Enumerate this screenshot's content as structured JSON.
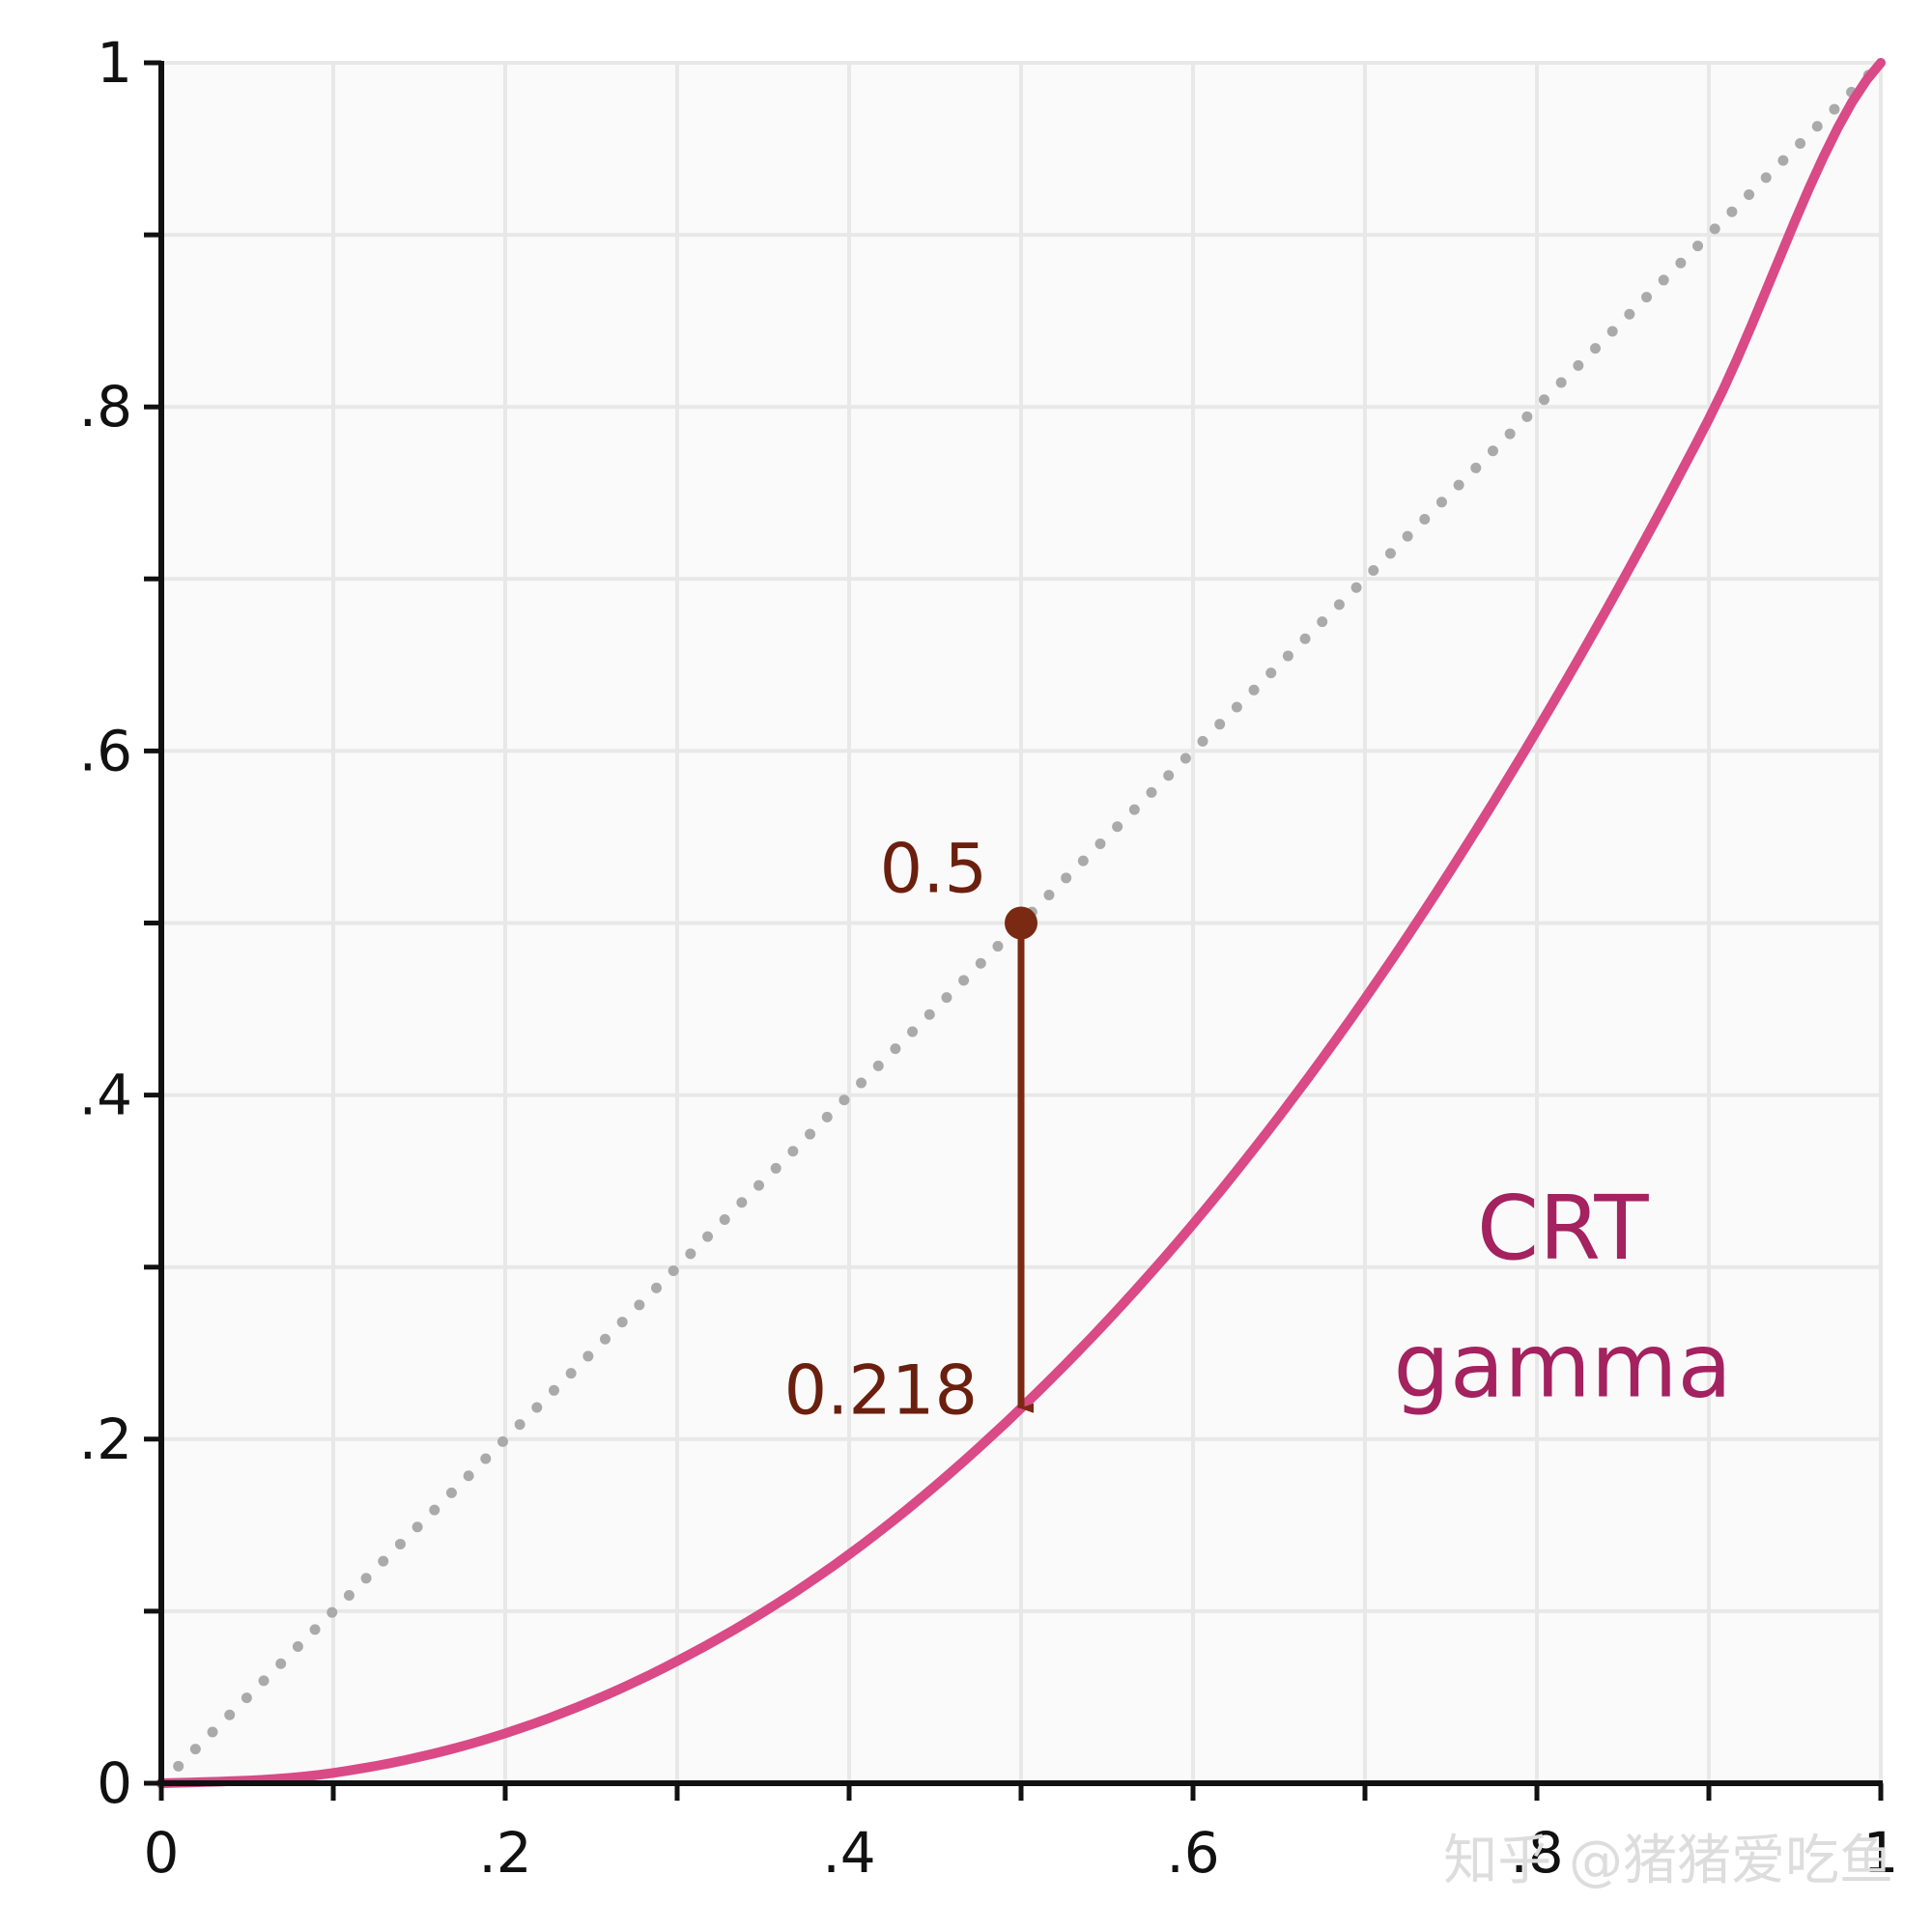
{
  "chart_data": {
    "type": "line",
    "xlim": [
      0,
      1
    ],
    "ylim": [
      0,
      1
    ],
    "grid": true,
    "x_ticks": [
      {
        "value": 0,
        "label": "0"
      },
      {
        "value": 0.2,
        "label": ".2"
      },
      {
        "value": 0.4,
        "label": ".4"
      },
      {
        "value": 0.6,
        "label": ".6"
      },
      {
        "value": 0.8,
        "label": ".8"
      },
      {
        "value": 1,
        "label": "1"
      }
    ],
    "y_ticks": [
      {
        "value": 0,
        "label": "0"
      },
      {
        "value": 0.2,
        "label": ".2"
      },
      {
        "value": 0.4,
        "label": ".4"
      },
      {
        "value": 0.6,
        "label": ".6"
      },
      {
        "value": 0.8,
        "label": ".8"
      },
      {
        "value": 1,
        "label": "1"
      }
    ],
    "minor_step": 0.1,
    "series": [
      {
        "name": "",
        "style": "dotted",
        "color": "#aaaaaa",
        "x": [
          0,
          1
        ],
        "y": [
          0,
          1
        ]
      },
      {
        "name": "",
        "style": "solid",
        "color": "#d94a86",
        "x": [
          0,
          0.1,
          0.2,
          0.3,
          0.4,
          0.5,
          0.6,
          0.7,
          0.8,
          0.9,
          1.0
        ],
        "y": [
          0,
          0.006,
          0.029,
          0.071,
          0.133,
          0.218,
          0.325,
          0.456,
          0.612,
          0.793,
          1.0
        ]
      }
    ],
    "annotations": {
      "point": {
        "x": 0.5,
        "y": 0.5,
        "label": "0.5",
        "color": "#7a2a12"
      },
      "arrow": {
        "x": 0.5,
        "y_from": 0.5,
        "y_to": 0.218,
        "label": "0.218",
        "color": "#7a2a12"
      },
      "series_label": {
        "line1": "CRT",
        "line2": "gamma",
        "color": "#a3225f"
      }
    },
    "watermark": "知乎 @猪猪爱吃鱼"
  }
}
